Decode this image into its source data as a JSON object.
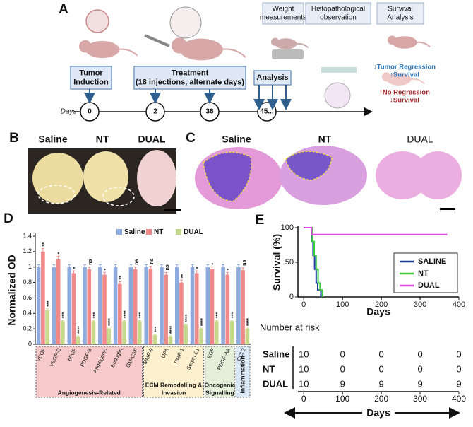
{
  "panel_labels": [
    "A",
    "B",
    "C",
    "D",
    "E"
  ],
  "timeline": {
    "days_label": "Days",
    "days": [
      "0",
      "2",
      "36",
      "45..."
    ],
    "boxes": [
      {
        "lines": [
          "Tumor",
          "Induction"
        ]
      },
      {
        "lines": [
          "Treatment",
          "(18 injections, alternate days)"
        ]
      },
      {
        "lines": [
          "Analysis"
        ]
      }
    ],
    "top_boxes": [
      {
        "lines": [
          "Weight",
          "measurements"
        ]
      },
      {
        "lines": [
          "Histopathological",
          "observation"
        ]
      },
      {
        "lines": [
          "Survival",
          "Analysis"
        ]
      }
    ],
    "outcomes": [
      {
        "lines": [
          "↓Tumor Regression",
          "↑Survival"
        ],
        "color": "#2e75b6"
      },
      {
        "lines": [
          "↑No Regression",
          "↓Survival"
        ],
        "color": "#a0282a"
      }
    ]
  },
  "photos": {
    "labels": [
      "Saline",
      "NT",
      "DUAL"
    ]
  },
  "sections": {
    "labels": [
      "Saline",
      "NT",
      "DUAL"
    ]
  },
  "chart_data": [
    {
      "type": "bar",
      "y_label": "Normalized OD",
      "legend": "top",
      "categories": [
        "VEGF",
        "VEGF-C",
        "bFGF",
        "PDGF-B",
        "Angiogenin",
        "Endoglin",
        "GM-CSF",
        "MMP-9",
        "UPA",
        "TIMP-1",
        "Serpin E1",
        "EGF",
        "PDGF-AA",
        "CCL2"
      ],
      "series": [
        {
          "name": "Saline",
          "color": "#8faadc",
          "values": [
            1,
            1,
            1,
            1,
            1,
            1,
            1,
            1,
            1,
            1,
            1,
            1,
            1,
            1
          ],
          "errors": [
            0.03,
            0.03,
            0.03,
            0.03,
            0.03,
            0.03,
            0.03,
            0.03,
            0.03,
            0.03,
            0.03,
            0.03,
            0.03,
            0.03
          ]
        },
        {
          "name": "NT",
          "color": "#f08a8a",
          "values": [
            1.2,
            1.1,
            0.92,
            0.97,
            0.9,
            0.78,
            0.97,
            0.98,
            0.9,
            0.8,
            0.92,
            0.97,
            0.9,
            0.96
          ],
          "errors": [
            0.04,
            0.04,
            0.03,
            0.03,
            0.03,
            0.03,
            0.03,
            0.03,
            0.03,
            0.03,
            0.03,
            0.03,
            0.03,
            0.03
          ],
          "significance": [
            "**",
            "*",
            "*",
            "ns",
            "*",
            "**",
            "ns",
            "ns",
            "ns",
            "**",
            "*",
            "*",
            "*",
            "ns"
          ]
        },
        {
          "name": "DUAL",
          "color": "#c5d88c",
          "values": [
            0.44,
            0.3,
            0.1,
            0.3,
            0.2,
            0.3,
            0.3,
            0.12,
            0.1,
            0.25,
            0.2,
            0.3,
            0.3,
            0.2
          ],
          "errors": [
            0.02,
            0.01,
            0.01,
            0.01,
            0.01,
            0.01,
            0.01,
            0.01,
            0.01,
            0.01,
            0.01,
            0.01,
            0.01,
            0.01
          ],
          "significance": [
            "***",
            "***",
            "****",
            "***",
            "****",
            "****",
            "***",
            "***",
            "****",
            "****",
            "****",
            "***",
            "***",
            "****"
          ]
        }
      ],
      "ylim": [
        0,
        1.4
      ],
      "yticks": [
        0,
        0.2,
        0.4,
        0.6,
        0.8,
        1,
        1.2,
        1.4
      ],
      "groups": [
        {
          "lines": [
            "Angiogenesis-Related"
          ],
          "span": [
            0,
            6
          ],
          "color": "#f6caca"
        },
        {
          "lines": [
            "ECM Remodelling &",
            "Invasion"
          ],
          "span": [
            7,
            10
          ],
          "color": "#fcf0cf"
        },
        {
          "lines": [
            "Oncogenic",
            "Signalling"
          ],
          "span": [
            11,
            12
          ],
          "color": "#e3efd9"
        },
        {
          "lines": [
            "Inflammation"
          ],
          "span": [
            13,
            13
          ],
          "color": "#dbe9f7"
        }
      ]
    },
    {
      "type": "step",
      "y_label": "Survival (%)",
      "x_label": "Days",
      "legend": "right",
      "xlim": [
        -15,
        400
      ],
      "ylim": [
        0,
        100
      ],
      "xticks": [
        0,
        100,
        200,
        300,
        400
      ],
      "yticks": [
        0,
        50,
        100
      ],
      "series": [
        {
          "name": "SALINE",
          "color": "#1f3c9c",
          "x": [
            0,
            20,
            24,
            28,
            32,
            36,
            44
          ],
          "values": [
            100,
            80,
            60,
            40,
            20,
            10,
            0
          ]
        },
        {
          "name": "NT",
          "color": "#3ccc3c",
          "x": [
            0,
            22,
            27,
            32,
            37,
            42,
            48
          ],
          "values": [
            100,
            80,
            60,
            40,
            20,
            10,
            0
          ]
        },
        {
          "name": "DUAL",
          "color": "#e04ae0",
          "x": [
            0,
            20,
            370
          ],
          "values": [
            100,
            90,
            90
          ]
        }
      ],
      "risk_table": {
        "title": "Number at risk",
        "x_label": "Days",
        "rows": [
          {
            "name": "Saline",
            "values": [
              10,
              0,
              0,
              0,
              0
            ]
          },
          {
            "name": "NT",
            "values": [
              10,
              0,
              0,
              0,
              0
            ]
          },
          {
            "name": "DUAL",
            "values": [
              10,
              9,
              9,
              9,
              9
            ]
          }
        ]
      }
    }
  ]
}
